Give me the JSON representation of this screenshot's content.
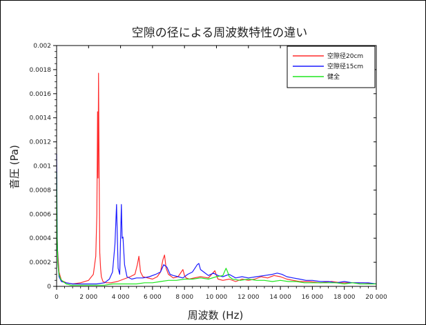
{
  "chart_data": {
    "type": "line",
    "title": "空隙の径による周波数特性の違い",
    "xlabel": "周波数 (Hz)",
    "ylabel": "音圧 (Pa)",
    "xlim": [
      0,
      20000
    ],
    "ylim": [
      0,
      0.002
    ],
    "grid": false,
    "legend_position": "top-right",
    "x_ticks": [
      0,
      2000,
      4000,
      6000,
      8000,
      10000,
      12000,
      14000,
      16000,
      18000,
      20000
    ],
    "x_tick_labels": [
      "0",
      "2 000",
      "4 000",
      "6 000",
      "8 000",
      "10 000",
      "12 000",
      "14 000",
      "16 000",
      "18 000",
      "20 000"
    ],
    "y_ticks": [
      0,
      0.0002,
      0.0004,
      0.0006,
      0.0008,
      0.001,
      0.0012,
      0.0014,
      0.0016,
      0.0018,
      0.002
    ],
    "y_tick_labels": [
      "0",
      "0.0002",
      "0.0004",
      "0.0006",
      "0.0008",
      "0.001",
      "0.0012",
      "0.0014",
      "0.0016",
      "0.0018",
      "0.002"
    ],
    "series": [
      {
        "name": "空隙径20cm",
        "color": "#ff2a2a",
        "x": [
          0,
          60,
          150,
          300,
          600,
          1000,
          1500,
          2000,
          2300,
          2450,
          2520,
          2560,
          2590,
          2620,
          2660,
          2700,
          2750,
          2800,
          2900,
          3100,
          3400,
          3800,
          4200,
          4600,
          4900,
          5050,
          5150,
          5250,
          5400,
          5700,
          6000,
          6300,
          6500,
          6650,
          6750,
          6850,
          7000,
          7300,
          7600,
          7800,
          7900,
          8000,
          8100,
          8300,
          8600,
          9000,
          9500,
          9900,
          10000,
          10100,
          10400,
          10800,
          11200,
          11600,
          12000,
          12400,
          12800,
          13200,
          13600,
          14000,
          14400,
          14800,
          15200,
          15800,
          16500,
          17200,
          17800,
          18500,
          19200,
          20000
        ],
        "y": [
          0.0006,
          0.0003,
          0.00012,
          5e-05,
          3e-05,
          2e-05,
          3e-05,
          5e-05,
          0.0001,
          0.00025,
          0.0006,
          0.00145,
          0.0009,
          0.00177,
          0.00095,
          0.00028,
          0.00015,
          8e-05,
          4e-05,
          3e-05,
          3e-05,
          4e-05,
          6e-05,
          8e-05,
          0.0001,
          0.00018,
          0.00025,
          0.00012,
          8e-05,
          7e-05,
          6e-05,
          8e-05,
          0.00012,
          0.00022,
          0.00026,
          0.00015,
          0.0001,
          7e-05,
          8e-05,
          0.00012,
          0.00014,
          9e-05,
          7e-05,
          6e-05,
          7e-05,
          8e-05,
          7e-05,
          0.00013,
          9e-05,
          6e-05,
          5e-05,
          6e-05,
          4e-05,
          6e-05,
          5e-05,
          6e-05,
          8e-05,
          7e-05,
          9e-05,
          8e-05,
          6e-05,
          5e-05,
          4e-05,
          4e-05,
          3e-05,
          4e-05,
          3e-05,
          3e-05,
          3e-05,
          2e-05
        ]
      },
      {
        "name": "空隙径15cm",
        "color": "#1a1aff",
        "x": [
          0,
          40,
          80,
          150,
          300,
          600,
          1000,
          1500,
          2000,
          2500,
          3000,
          3300,
          3500,
          3650,
          3750,
          3800,
          3850,
          3950,
          4050,
          4100,
          4150,
          4250,
          4400,
          4700,
          5000,
          5400,
          5800,
          6200,
          6500,
          6700,
          6900,
          7100,
          7300,
          7600,
          7900,
          8200,
          8500,
          8800,
          8900,
          9000,
          9200,
          9500,
          9800,
          10100,
          10400,
          10800,
          11200,
          11600,
          12000,
          12500,
          13000,
          13500,
          13800,
          14100,
          14400,
          14800,
          15200,
          15600,
          16000,
          16500,
          17000,
          17500,
          18000,
          18500,
          19000,
          19500,
          20000
        ],
        "y": [
          0.0011,
          0.0004,
          0.0002,
          8e-05,
          4e-05,
          3e-05,
          2e-05,
          2e-05,
          2e-05,
          2e-05,
          3e-05,
          6e-05,
          0.00012,
          0.00035,
          0.00068,
          0.0004,
          0.00015,
          0.0001,
          0.00068,
          0.0004,
          0.00041,
          0.00018,
          8e-05,
          6e-05,
          7e-05,
          7e-05,
          8e-05,
          0.0001,
          0.00012,
          0.00018,
          0.00016,
          0.0001,
          9e-05,
          8e-05,
          7e-05,
          0.0001,
          0.00012,
          0.00018,
          0.00019,
          0.00014,
          0.00012,
          9e-05,
          0.00011,
          9e-05,
          8e-05,
          0.0001,
          7e-05,
          8e-05,
          7e-05,
          8e-05,
          9e-05,
          0.0001,
          0.00011,
          0.0001,
          8e-05,
          7e-05,
          6e-05,
          5e-05,
          5e-05,
          4e-05,
          4e-05,
          3e-05,
          4e-05,
          3e-05,
          3e-05,
          3e-05,
          2e-05
        ]
      },
      {
        "name": "健全",
        "color": "#1ee61e",
        "x": [
          0,
          30,
          80,
          150,
          250,
          400,
          600,
          900,
          1200,
          1600,
          2000,
          2500,
          3000,
          3500,
          4000,
          4500,
          5000,
          5500,
          6000,
          6500,
          7000,
          7500,
          8000,
          8500,
          9000,
          9500,
          10000,
          10400,
          10600,
          10700,
          10800,
          11000,
          11500,
          12000,
          12500,
          13000,
          13500,
          14000,
          14500,
          15000,
          15500,
          16000,
          16500,
          17000,
          17500,
          18000,
          18500,
          19000,
          19500,
          20000
        ],
        "y": [
          0.00095,
          0.0004,
          0.00018,
          0.0001,
          6e-05,
          4e-05,
          2e-05,
          1e-05,
          1e-05,
          1e-05,
          1e-05,
          1e-05,
          1e-05,
          2e-05,
          2e-05,
          2e-05,
          2e-05,
          3e-05,
          3e-05,
          4e-05,
          5e-05,
          5e-05,
          6e-05,
          6e-05,
          7e-05,
          6e-05,
          8e-05,
          9e-05,
          0.00015,
          0.00012,
          8e-05,
          6e-05,
          5e-05,
          6e-05,
          5e-05,
          5e-05,
          4e-05,
          5e-05,
          4e-05,
          4e-05,
          3e-05,
          3e-05,
          3e-05,
          3e-05,
          3e-05,
          2e-05,
          3e-05,
          2e-05,
          2e-05,
          2e-05
        ]
      }
    ]
  }
}
